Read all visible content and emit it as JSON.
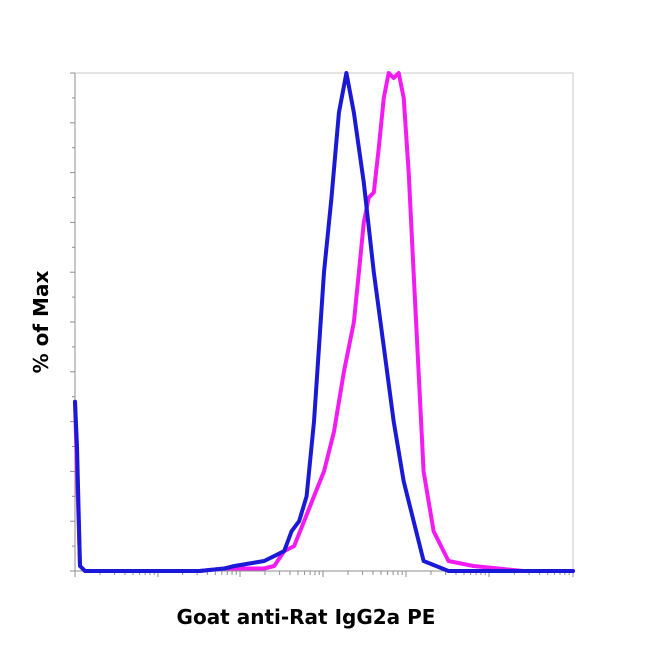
{
  "chart_data": {
    "type": "line",
    "title": "",
    "xlabel": "Goat anti-Rat IgG2a PE",
    "ylabel": "% of Max",
    "xscale": "log",
    "xlim": [
      0,
      100
    ],
    "ylim": [
      0,
      100
    ],
    "grid": false,
    "legend": "none",
    "series": [
      {
        "color": "#1a1ad6",
        "x": [
          0,
          0.4,
          1,
          2,
          5,
          10,
          15,
          20,
          25,
          30,
          32,
          35,
          38,
          40,
          42,
          43.5,
          45,
          46.5,
          48,
          49,
          50,
          51.5,
          53,
          54.5,
          56,
          58,
          60,
          62,
          64,
          66,
          70,
          75,
          80,
          90,
          100
        ],
        "y": [
          34,
          25,
          1,
          0,
          0,
          0,
          0,
          0,
          0,
          0.5,
          1,
          1.5,
          2,
          3,
          4,
          8,
          10,
          15,
          30,
          45,
          60,
          75,
          92,
          100,
          92,
          78,
          60,
          45,
          30,
          18,
          2,
          0,
          0,
          0,
          0
        ]
      },
      {
        "color": "#f21bf2",
        "x": [
          0,
          0.4,
          1,
          2,
          5,
          10,
          15,
          20,
          25,
          30,
          35,
          38,
          40,
          42,
          44,
          46,
          48,
          50,
          52,
          54,
          56,
          57,
          58,
          59,
          60,
          61,
          62,
          63,
          64,
          65,
          66,
          67,
          68,
          69,
          70,
          72,
          75,
          80,
          85,
          90,
          100
        ],
        "y": [
          34,
          20,
          1,
          0,
          0,
          0,
          0,
          0,
          0,
          0.5,
          0.5,
          0.5,
          1,
          4,
          5,
          10,
          15,
          20,
          28,
          40,
          50,
          60,
          70,
          75,
          76,
          85,
          95,
          100,
          99,
          100,
          95,
          80,
          60,
          40,
          20,
          8,
          2,
          1,
          0.5,
          0,
          0
        ]
      }
    ]
  }
}
